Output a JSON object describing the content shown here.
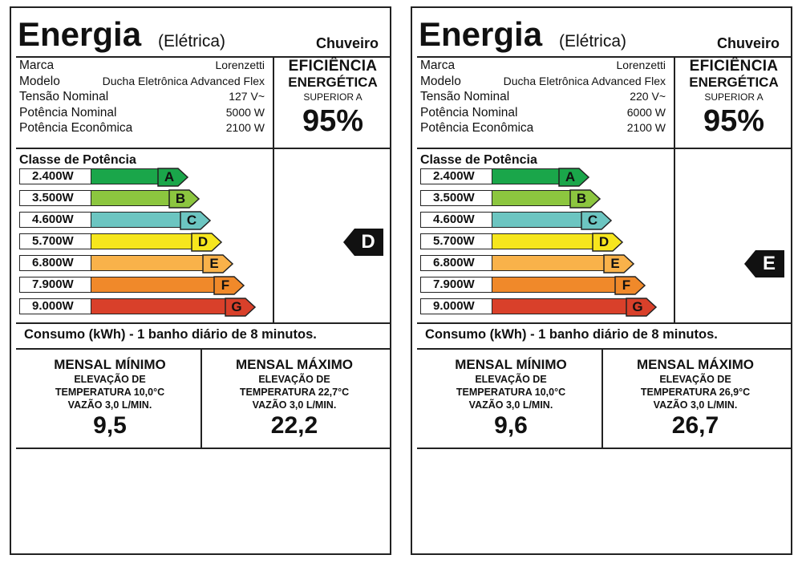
{
  "labels": [
    {
      "title": "Energia",
      "subtitle": "(Elétrica)",
      "product": "Chuveiro",
      "specs": [
        {
          "label": "Marca",
          "value": "Lorenzetti"
        },
        {
          "label": "Modelo",
          "value": "Ducha Eletrônica Advanced Flex"
        },
        {
          "label": "Tensão Nominal",
          "value": "127 V~"
        },
        {
          "label": "Potência Nominal",
          "value": "5000 W"
        },
        {
          "label": "Potência Econômica",
          "value": "2100 W"
        }
      ],
      "efficiency": {
        "line1": "EFICIÊNCIA",
        "line2": "ENERGÉTICA",
        "line3": "SUPERIOR A",
        "value": "95%"
      },
      "classe_title": "Classe de Potência",
      "classes": [
        {
          "watts": "2.400W",
          "letter": "A",
          "color": "#1aa64a"
        },
        {
          "watts": "3.500W",
          "letter": "B",
          "color": "#8cc63f"
        },
        {
          "watts": "4.600W",
          "letter": "C",
          "color": "#6cc5c1"
        },
        {
          "watts": "5.700W",
          "letter": "D",
          "color": "#f6e61d"
        },
        {
          "watts": "6.800W",
          "letter": "E",
          "color": "#f9b24a"
        },
        {
          "watts": "7.900W",
          "letter": "F",
          "color": "#f0892a"
        },
        {
          "watts": "9.000W",
          "letter": "G",
          "color": "#d9402a"
        }
      ],
      "rating": "D",
      "consumo_title": "Consumo (kWh) - 1 banho diário de 8 minutos.",
      "mensal_minimo": {
        "title": "MENSAL MÍNIMO",
        "line1": "ELEVAÇÃO DE",
        "line2": "TEMPERATURA 10,0°C",
        "line3": "VAZÃO 3,0 L/MIN.",
        "value": "9,5"
      },
      "mensal_maximo": {
        "title": "MENSAL MÁXIMO",
        "line1": "ELEVAÇÃO DE",
        "line2": "TEMPERATURA 22,7°C",
        "line3": "VAZÃO 3,0 L/MIN.",
        "value": "22,2"
      }
    },
    {
      "title": "Energia",
      "subtitle": "(Elétrica)",
      "product": "Chuveiro",
      "specs": [
        {
          "label": "Marca",
          "value": "Lorenzetti"
        },
        {
          "label": "Modelo",
          "value": "Ducha Eletrônica Advanced Flex"
        },
        {
          "label": "Tensão Nominal",
          "value": "220 V~"
        },
        {
          "label": "Potência Nominal",
          "value": "6000 W"
        },
        {
          "label": "Potência Econômica",
          "value": "2100 W"
        }
      ],
      "efficiency": {
        "line1": "EFICIÊNCIA",
        "line2": "ENERGÉTICA",
        "line3": "SUPERIOR A",
        "value": "95%"
      },
      "classe_title": "Classe de Potência",
      "classes": [
        {
          "watts": "2.400W",
          "letter": "A",
          "color": "#1aa64a"
        },
        {
          "watts": "3.500W",
          "letter": "B",
          "color": "#8cc63f"
        },
        {
          "watts": "4.600W",
          "letter": "C",
          "color": "#6cc5c1"
        },
        {
          "watts": "5.700W",
          "letter": "D",
          "color": "#f6e61d"
        },
        {
          "watts": "6.800W",
          "letter": "E",
          "color": "#f9b24a"
        },
        {
          "watts": "7.900W",
          "letter": "F",
          "color": "#f0892a"
        },
        {
          "watts": "9.000W",
          "letter": "G",
          "color": "#d9402a"
        }
      ],
      "rating": "E",
      "consumo_title": "Consumo (kWh) - 1 banho diário de 8 minutos.",
      "mensal_minimo": {
        "title": "MENSAL MÍNIMO",
        "line1": "ELEVAÇÃO DE",
        "line2": "TEMPERATURA 10,0°C",
        "line3": "VAZÃO 3,0 L/MIN.",
        "value": "9,6"
      },
      "mensal_maximo": {
        "title": "MENSAL MÁXIMO",
        "line1": "ELEVAÇÃO DE",
        "line2": "TEMPERATURA 26,9°C",
        "line3": "VAZÃO 3,0 L/MIN.",
        "value": "26,7"
      }
    }
  ]
}
